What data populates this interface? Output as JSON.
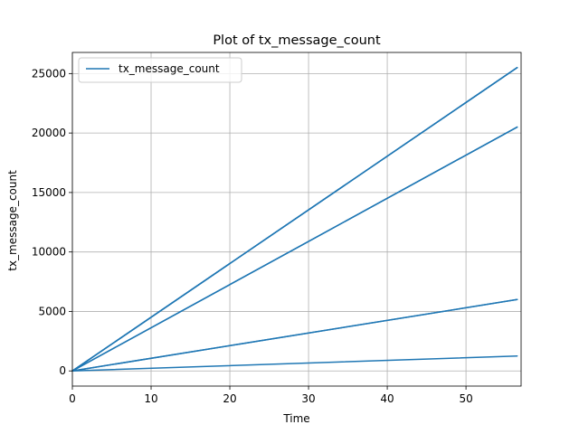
{
  "chart_data": {
    "type": "line",
    "title": "Plot of tx_message_count",
    "xlabel": "Time",
    "ylabel": "tx_message_count",
    "xlim": [
      0,
      57
    ],
    "ylim": [
      -1275,
      26775
    ],
    "xticks": [
      0,
      10,
      20,
      30,
      40,
      50
    ],
    "yticks": [
      0,
      5000,
      10000,
      15000,
      20000,
      25000
    ],
    "grid": true,
    "legend_position": "top-left",
    "series": [
      {
        "name": "tx_message_count",
        "color": "#1f77b4",
        "segments": [
          [
            [
              0,
              0
            ],
            [
              56.5,
              25500
            ]
          ],
          [
            [
              0,
              0
            ],
            [
              56.5,
              25500
            ]
          ],
          [
            [
              0,
              0
            ],
            [
              56.5,
              25500
            ]
          ],
          [
            [
              0,
              0
            ],
            [
              56.5,
              20500
            ]
          ],
          [
            [
              0,
              0
            ],
            [
              56.5,
              20500
            ]
          ],
          [
            [
              0,
              0
            ],
            [
              56.5,
              6000
            ]
          ],
          [
            [
              0,
              0
            ],
            [
              56.5,
              6000
            ]
          ],
          [
            [
              0,
              0
            ],
            [
              56.5,
              1250
            ]
          ]
        ]
      }
    ]
  }
}
